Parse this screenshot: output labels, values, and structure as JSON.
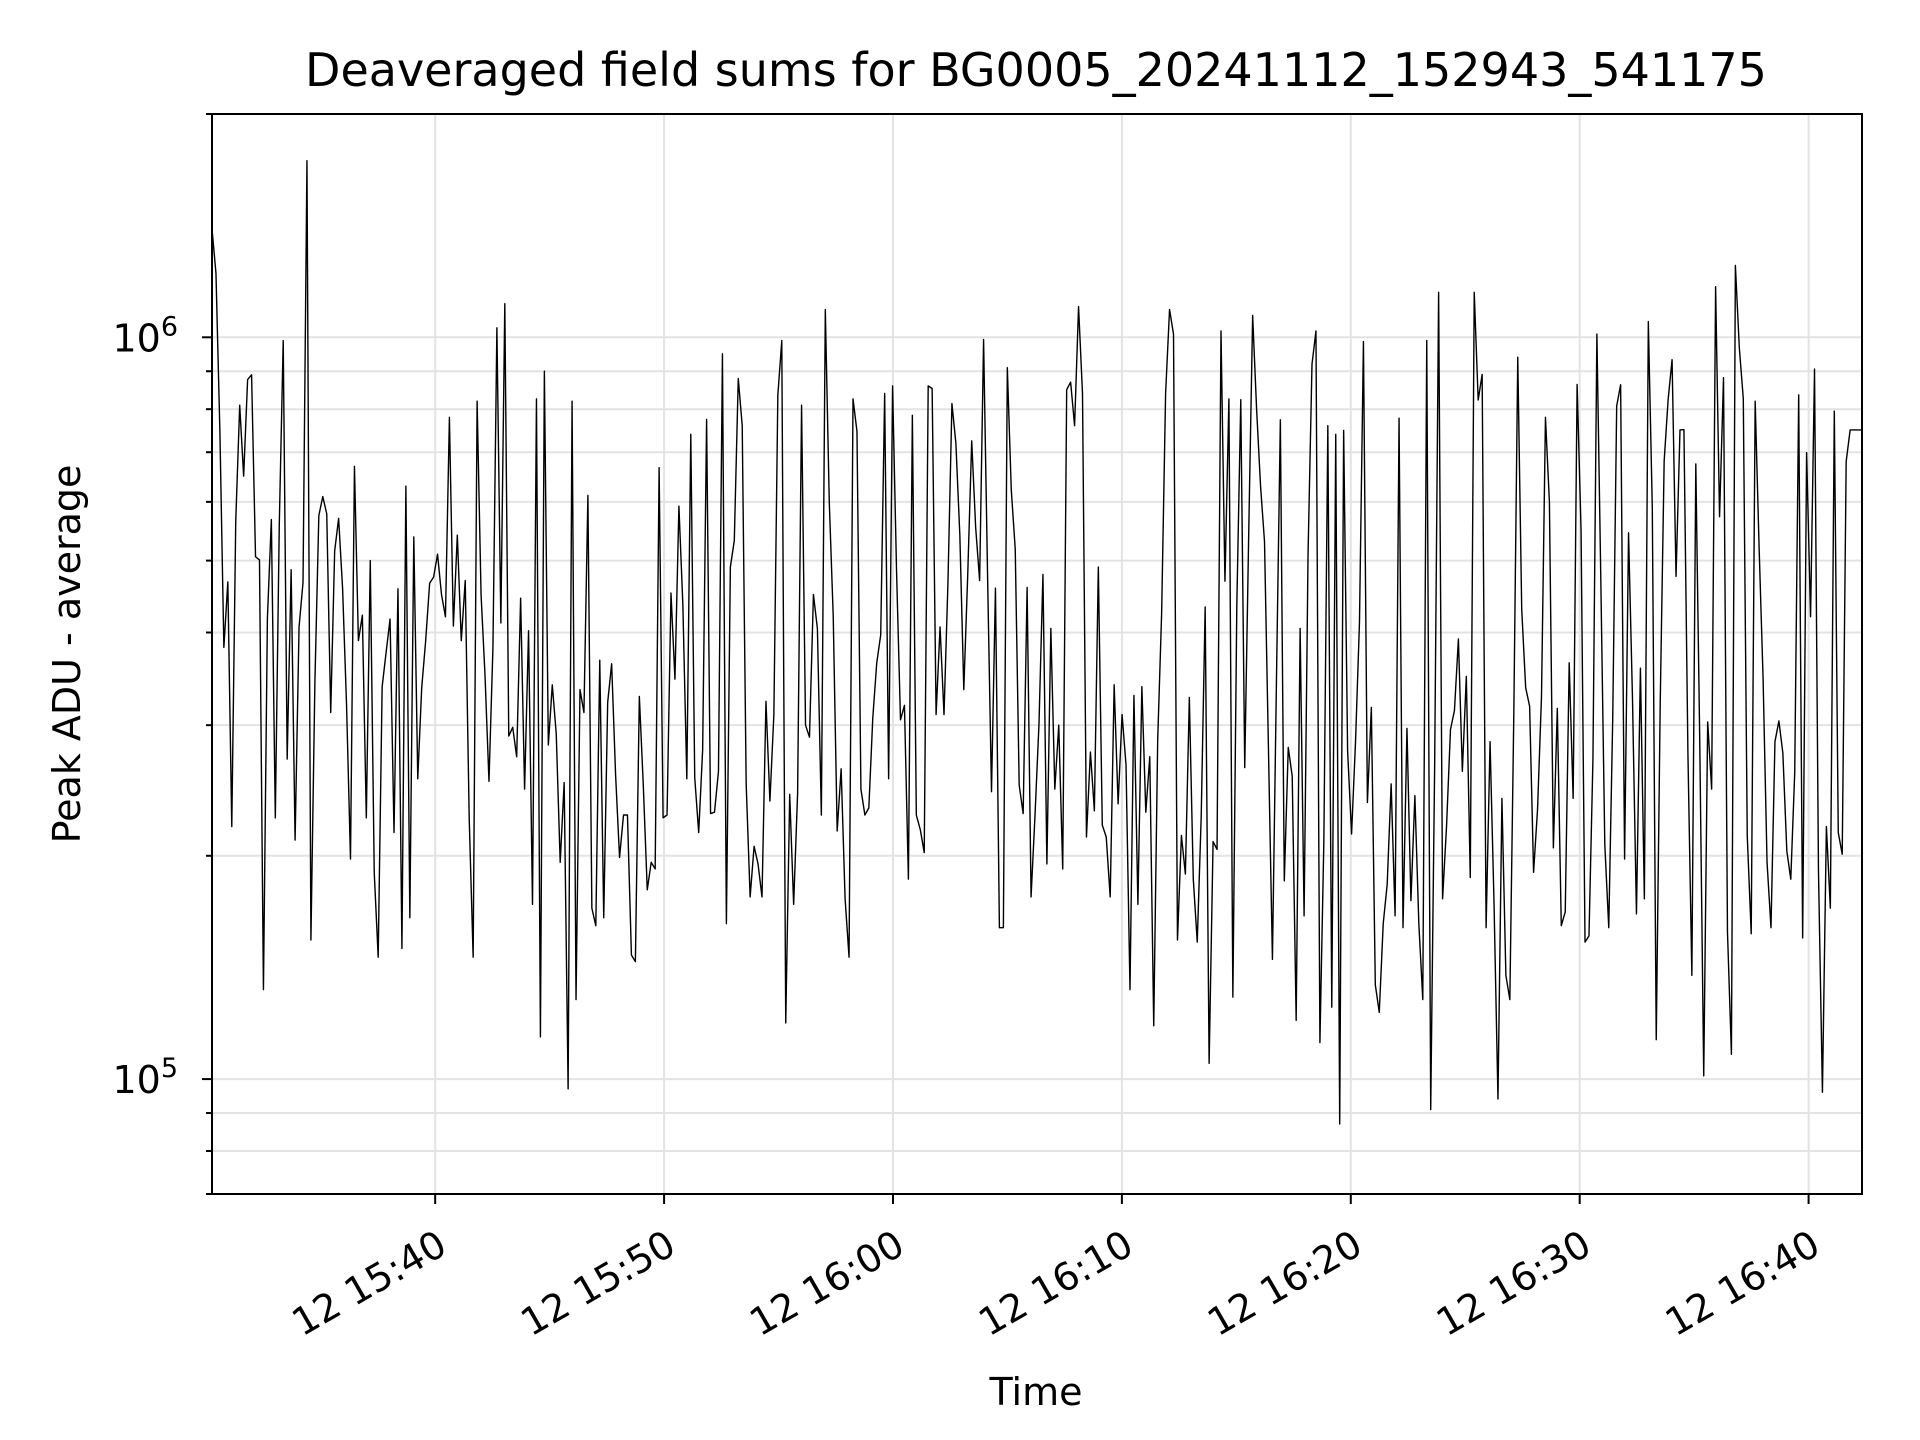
{
  "chart_data": {
    "type": "line",
    "title": "Deaveraged field sums for BG0005_20241112_152943_541175",
    "xlabel": "Time",
    "ylabel": "Peak ADU - average",
    "x_start": "12 15:30:15",
    "x_end": "12 16:42:20",
    "xlim": [
      "12 15:30:15",
      "12 16:42:20"
    ],
    "ylim": [
      70000,
      2000000
    ],
    "yscale": "log",
    "grid": true,
    "line_color": "#000000",
    "x_ticks": [
      "12 15:40",
      "12 15:50",
      "12 16:00",
      "12 16:10",
      "12 16:20",
      "12 16:30",
      "12 16:40"
    ],
    "y_ticks": [
      {
        "value": 100000,
        "base": "10",
        "exp": "5"
      },
      {
        "value": 1000000,
        "base": "10",
        "exp": "6"
      }
    ],
    "values": [
      1400000,
      1220000,
      745000,
      382000,
      468000,
      219000,
      565000,
      810000,
      650000,
      877000,
      890000,
      506000,
      501000,
      132000,
      418000,
      568000,
      225000,
      558000,
      990000,
      270000,
      486000,
      210000,
      407000,
      467000,
      1730000,
      154000,
      342000,
      575000,
      610000,
      578000,
      312000,
      515000,
      570000,
      459000,
      320000,
      198000,
      670000,
      390000,
      422000,
      225000,
      500000,
      190000,
      146000,
      338000,
      376000,
      417000,
      215000,
      458000,
      150000,
      630000,
      165000,
      538000,
      254000,
      337000,
      390000,
      466000,
      475000,
      510000,
      450000,
      420000,
      780000,
      408000,
      541000,
      390000,
      470000,
      225000,
      146000,
      820000,
      450000,
      350000,
      252000,
      382000,
      1030000,
      412000,
      1110000,
      290000,
      298000,
      272000,
      445000,
      246000,
      402000,
      172000,
      826000,
      114000,
      900000,
      282000,
      340000,
      292000,
      196000,
      251000,
      97000,
      820000,
      128000,
      335000,
      312000,
      612000,
      170000,
      161000,
      367000,
      165000,
      322000,
      363000,
      257000,
      199000,
      227000,
      227000,
      147000,
      144000,
      328000,
      249000,
      180000,
      196000,
      192000,
      667000,
      225000,
      227000,
      452000,
      346000,
      592000,
      436000,
      254000,
      740000,
      255000,
      215000,
      278000,
      775000,
      228000,
      229000,
      260000,
      950000,
      162000,
      490000,
      532000,
      880000,
      760000,
      250000,
      176000,
      206000,
      195000,
      176000,
      323000,
      237000,
      310000,
      835000,
      990000,
      119000,
      242000,
      172000,
      243000,
      810000,
      300000,
      289000,
      450000,
      405000,
      227000,
      1090000,
      600000,
      421000,
      216000,
      262000,
      175000,
      146000,
      826000,
      747000,
      246000,
      227000,
      232000,
      307000,
      364000,
      397000,
      840000,
      254000,
      860000,
      485000,
      305000,
      319000,
      186000,
      785000,
      227000,
      217000,
      202000,
      860000,
      853000,
      310000,
      407000,
      310000,
      468000,
      814000,
      720000,
      541000,
      335000,
      480000,
      725000,
      554000,
      470000,
      993000,
      480000,
      244000,
      459000,
      160000,
      160000,
      910000,
      623000,
      518000,
      249000,
      228000,
      460000,
      176000,
      227000,
      301000,
      479000,
      195000,
      405000,
      246000,
      300000,
      192000,
      850000,
      870000,
      760000,
      1100000,
      840000,
      212000,
      276000,
      230000,
      490000,
      220000,
      212000,
      176000,
      340000,
      235000,
      310000,
      265000,
      132000,
      329000,
      172000,
      338000,
      229000,
      272000,
      118000,
      286000,
      425000,
      840000,
      1090000,
      1010000,
      154000,
      213000,
      189000,
      327000,
      186000,
      153000,
      226000,
      433000,
      105000,
      209000,
      204000,
      1020000,
      469000,
      826000,
      129000,
      436000,
      824000,
      263000,
      541000,
      1070000,
      800000,
      630000,
      530000,
      278000,
      145000,
      340000,
      774000,
      185000,
      280000,
      256000,
      120000,
      405000,
      166000,
      510000,
      920000,
      1020000,
      112000,
      210000,
      760000,
      125000,
      740000,
      87000,
      749000,
      277000,
      214000,
      285000,
      413000,
      987000,
      236000,
      317000,
      134000,
      123000,
      162000,
      183000,
      250000,
      166000,
      778000,
      160000,
      297000,
      174000,
      241000,
      162000,
      128000,
      990000,
      91000,
      265000,
      1150000,
      175000,
      219000,
      296000,
      314000,
      392000,
      260000,
      349000,
      187000,
      1150000,
      823000,
      891000,
      160000,
      285000,
      173000,
      94000,
      239000,
      138000,
      128000,
      310000,
      940000,
      430000,
      337000,
      318000,
      190000,
      231000,
      328000,
      780000,
      600000,
      205000,
      316000,
      161000,
      168000,
      364000,
      239000,
      864000,
      550000,
      153000,
      156000,
      270000,
      1010000,
      468000,
      207000,
      160000,
      306000,
      808000,
      863000,
      198000,
      545000,
      325000,
      167000,
      358000,
      175000,
      1050000,
      590000,
      113000,
      320000,
      681000,
      824000,
      933000,
      476000,
      750000,
      751000,
      276000,
      138000,
      675000,
      284000,
      101000,
      303000,
      246000,
      1170000,
      573000,
      882000,
      158000,
      108000,
      1250000,
      967000,
      827000,
      213000,
      157000,
      820000,
      520000,
      347000,
      196000,
      160000,
      285000,
      304000,
      275000,
      203000,
      186000,
      259000,
      836000,
      155000,
      699000,
      420000,
      906000,
      191000,
      96000,
      219000,
      170000,
      795000,
      215000,
      201000,
      680000,
      750000,
      750000,
      750000,
      750000
    ]
  }
}
